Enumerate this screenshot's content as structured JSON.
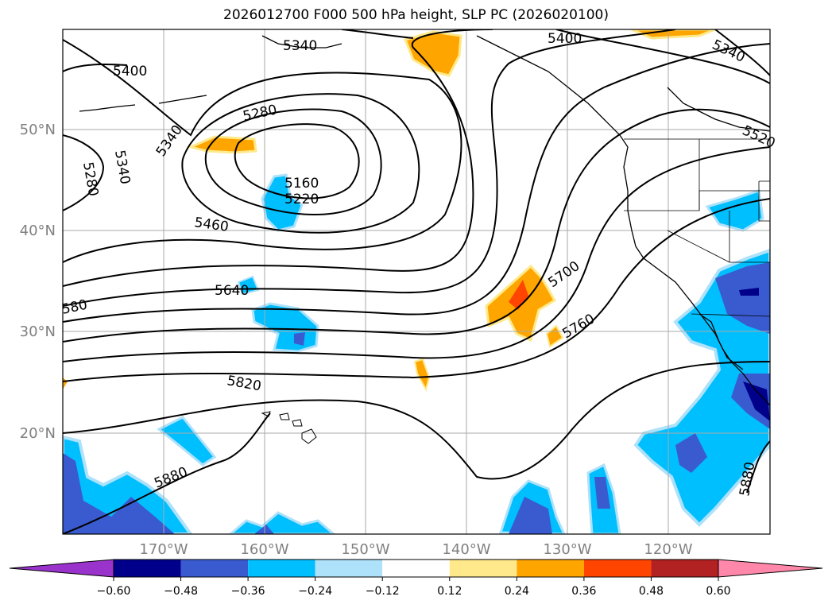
{
  "title": "2026012700 F000 500 hPa height, SLP PC (2026020100)",
  "lat_labels": [
    "50°N",
    "40°N",
    "30°N",
    "20°N"
  ],
  "lon_labels": [
    "170°W",
    "160°W",
    "150°W",
    "140°W",
    "130°W",
    "120°W"
  ],
  "contour_labels": {
    "c5340_nw": "5340",
    "c5400_nw": "5400",
    "c5400_ne": "5400",
    "c5340_ne": "5340",
    "c5520": "5520",
    "c5280_top": "5280",
    "c5340_w": "5340",
    "c5280_w": "5280",
    "c5340_wb": "5340",
    "c5160": "5160",
    "c5220": "5220",
    "c5460": "5460",
    "c5640": "5640",
    "c580": "580",
    "c5700": "5700",
    "c5760": "5760",
    "c5820": "5820",
    "c5880_w": "5880",
    "c5880_e": "5880"
  },
  "colorbar": {
    "colors": [
      "#9933cc",
      "#00008b",
      "#3a5bd0",
      "#00bfff",
      "#aee1fa",
      "#ffffff",
      "#ffe98a",
      "#ffa500",
      "#ff4500",
      "#b22222",
      "#ff88aa"
    ],
    "tick_labels": [
      "−0.60",
      "−0.48",
      "−0.36",
      "−0.24",
      "−0.12",
      "0.12",
      "0.24",
      "0.36",
      "0.48",
      "0.60"
    ]
  }
}
